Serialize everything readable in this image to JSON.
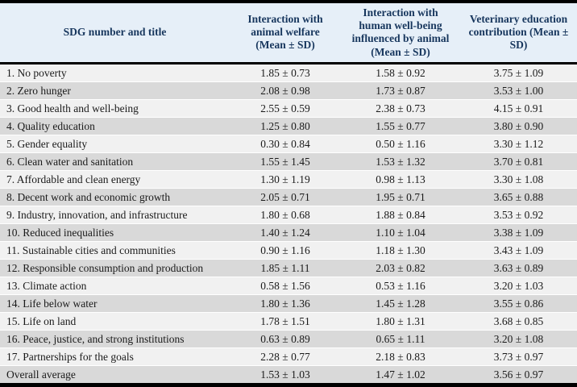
{
  "table": {
    "columns": [
      {
        "label": "SDG number and title"
      },
      {
        "label": "Interaction with animal welfare (Mean ± SD)"
      },
      {
        "label": "Interaction with human well-being influenced by animal (Mean ± SD)"
      },
      {
        "label": "Veterinary education contribution (Mean ± SD)"
      }
    ],
    "rows": [
      {
        "title": "1. No poverty",
        "values": [
          "1.85 ± 0.73",
          "1.58 ± 0.92",
          "3.75 ± 1.09"
        ]
      },
      {
        "title": "2. Zero hunger",
        "values": [
          "2.08 ± 0.98",
          "1.73 ± 0.87",
          "3.53 ± 1.00"
        ]
      },
      {
        "title": "3. Good health and well-being",
        "values": [
          "2.55 ± 0.59",
          "2.38 ± 0.73",
          "4.15 ± 0.91"
        ]
      },
      {
        "title": "4. Quality education",
        "values": [
          "1.25 ± 0.80",
          "1.55 ± 0.77",
          "3.80 ± 0.90"
        ]
      },
      {
        "title": "5. Gender equality",
        "values": [
          "0.30 ± 0.84",
          "0.50 ± 1.16",
          "3.30 ± 1.12"
        ]
      },
      {
        "title": "6. Clean water and sanitation",
        "values": [
          "1.55 ± 1.45",
          "1.53 ± 1.32",
          "3.70 ± 0.81"
        ]
      },
      {
        "title": "7. Affordable and clean energy",
        "values": [
          "1.30 ± 1.19",
          "0.98 ± 1.13",
          "3.30 ± 1.08"
        ]
      },
      {
        "title": "8. Decent work and economic growth",
        "values": [
          "2.05 ± 0.71",
          "1.95 ± 0.71",
          "3.65 ± 0.88"
        ]
      },
      {
        "title": "9. Industry, innovation, and infrastructure",
        "values": [
          "1.80 ± 0.68",
          "1.88 ± 0.84",
          "3.53 ± 0.92"
        ]
      },
      {
        "title": "10. Reduced inequalities",
        "values": [
          "1.40 ± 1.24",
          "1.10 ± 1.04",
          "3.38 ± 1.09"
        ]
      },
      {
        "title": "11. Sustainable cities and communities",
        "values": [
          "0.90 ± 1.16",
          "1.18 ± 1.30",
          "3.43 ± 1.09"
        ]
      },
      {
        "title": "12. Responsible consumption and production",
        "values": [
          "1.85 ± 1.11",
          "2.03 ± 0.82",
          "3.63 ± 0.89"
        ]
      },
      {
        "title": "13. Climate action",
        "values": [
          "0.58 ± 1.56",
          "0.53 ± 1.16",
          "3.20 ± 1.03"
        ]
      },
      {
        "title": "14. Life below water",
        "values": [
          "1.80 ± 1.36",
          "1.45 ± 1.28",
          "3.55 ± 0.86"
        ]
      },
      {
        "title": "15. Life on land",
        "values": [
          "1.78 ± 1.51",
          "1.80 ± 1.31",
          "3.68 ± 0.85"
        ]
      },
      {
        "title": "16. Peace, justice, and strong institutions",
        "values": [
          "0.63 ± 0.89",
          "0.65 ± 1.11",
          "3.20 ± 1.08"
        ]
      },
      {
        "title": "17. Partnerships for the goals",
        "values": [
          "2.28 ± 0.77",
          "2.18 ± 0.83",
          "3.73 ± 0.97"
        ]
      },
      {
        "title": "Overall average",
        "values": [
          "1.53 ± 1.03",
          "1.47 ± 1.02",
          "3.56 ± 0.97"
        ]
      }
    ],
    "colors": {
      "header_bg": "#e6eff8",
      "header_text": "#17365d",
      "body_text": "#1a1a1a",
      "row_odd": "#f1f1f1",
      "row_even": "#d9d9d9",
      "rule": "#000000"
    }
  }
}
